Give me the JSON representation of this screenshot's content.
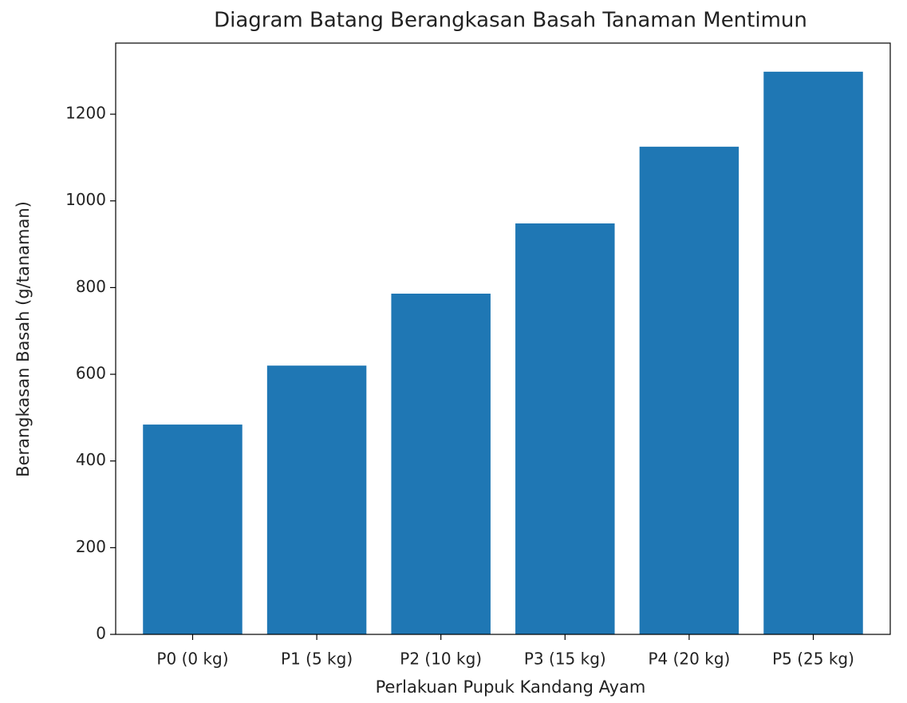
{
  "chart_data": {
    "type": "bar",
    "title": "Diagram Batang Berangkasan Basah Tanaman Mentimun",
    "x_label": "Perlakuan Pupuk Kandang Ayam",
    "y_label": "Berangkasan Basah (g/tanaman)",
    "categories": [
      "P0 (0 kg)",
      "P1 (5 kg)",
      "P2 (10 kg)",
      "P3 (15 kg)",
      "P4 (20 kg)",
      "P5 (25 kg)"
    ],
    "values": [
      484,
      620,
      786,
      948,
      1125,
      1298
    ],
    "color": "#1f77b4",
    "ylim": [
      0,
      1364
    ],
    "yticks": [
      0,
      200,
      400,
      600,
      800,
      1000,
      1200
    ],
    "grid": false
  }
}
